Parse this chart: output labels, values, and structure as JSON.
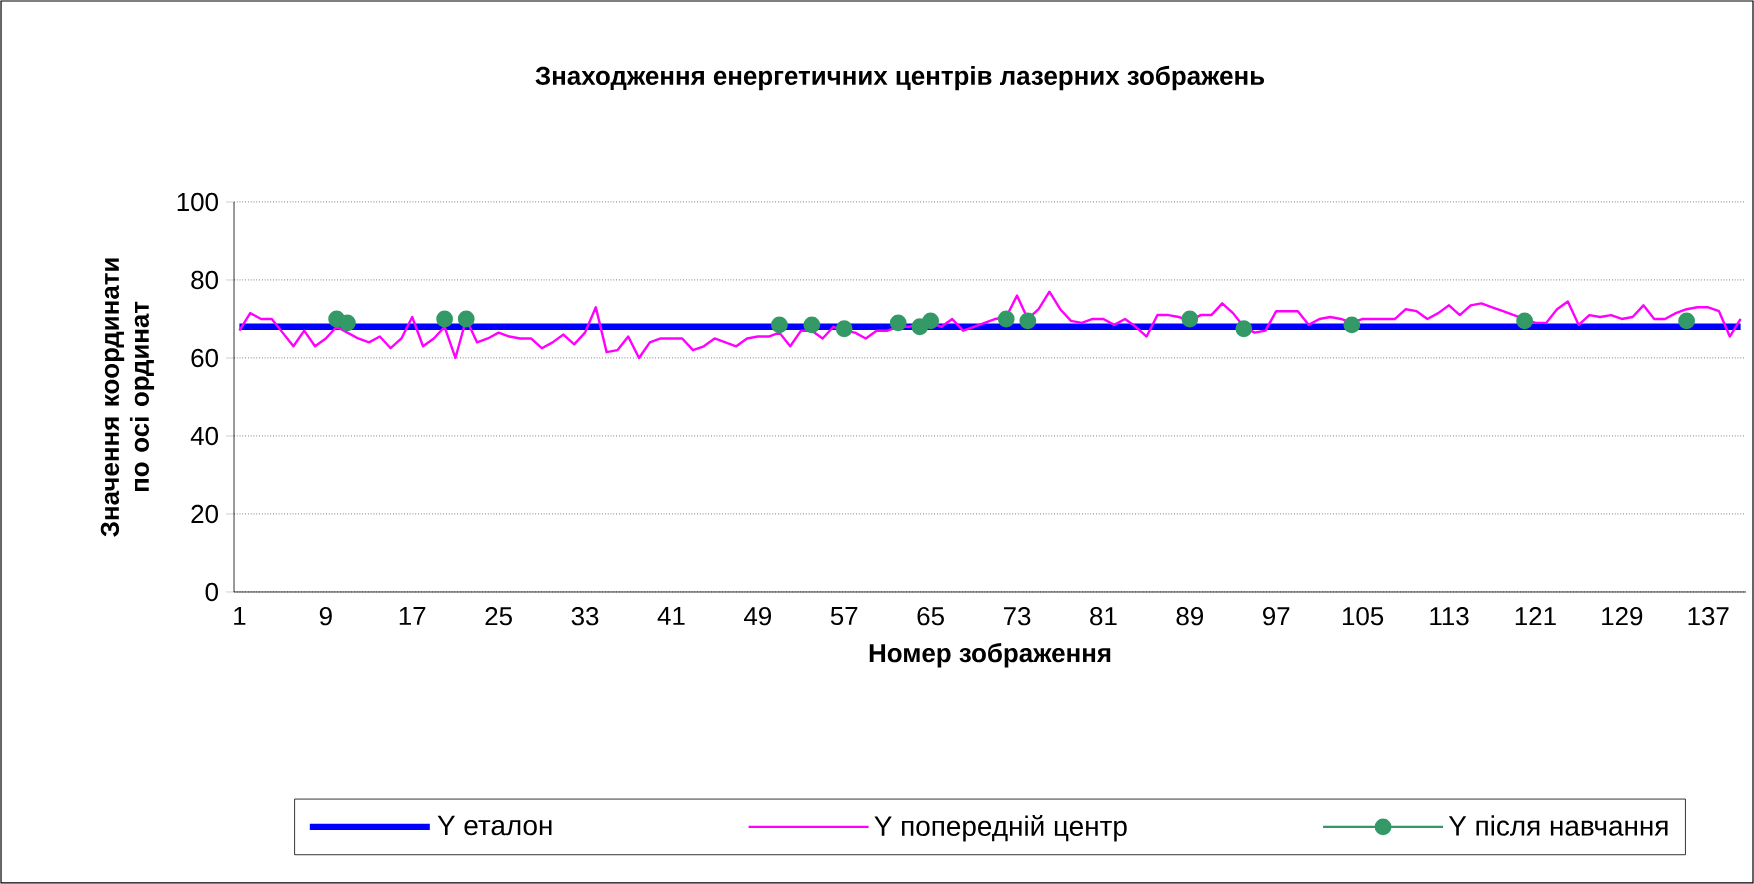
{
  "chart_data": {
    "type": "line",
    "title": "Знаходження енергетичних центрів лазерних зображень",
    "xlabel": "Номер зображення",
    "ylabel": "Значення координати по осі ординат",
    "categories": [
      "1",
      null,
      null,
      null,
      null,
      null,
      null,
      null,
      "9",
      null,
      null,
      null,
      null,
      null,
      null,
      null,
      "17",
      null,
      null,
      null,
      null,
      null,
      null,
      null,
      "25",
      null,
      null,
      null,
      null,
      null,
      null,
      null,
      "33",
      null,
      null,
      null,
      null,
      null,
      null,
      null,
      "41",
      null,
      null,
      null,
      null,
      null,
      null,
      null,
      "49",
      null,
      null,
      null,
      null,
      null,
      null,
      null,
      "57",
      null,
      null,
      null,
      null,
      null,
      null,
      null,
      "65",
      null,
      null,
      null,
      null,
      null,
      null,
      null,
      "73",
      null,
      null,
      null,
      null,
      null,
      null,
      null,
      "81",
      null,
      null,
      null,
      null,
      null,
      null,
      null,
      "89",
      null,
      null,
      null,
      null,
      null,
      null,
      null,
      "97",
      null,
      null,
      null,
      null,
      null,
      null,
      null,
      "105",
      null,
      null,
      null,
      null,
      null,
      null,
      null,
      "113",
      null,
      null,
      null,
      null,
      null,
      null,
      null,
      "121",
      null,
      null,
      null,
      null,
      null,
      null,
      null,
      "129",
      null,
      null,
      null,
      null,
      null,
      null,
      null,
      "137",
      null,
      null,
      null
    ],
    "ylim": [
      0,
      100
    ],
    "yticks": [
      0,
      20,
      40,
      60,
      80,
      100
    ],
    "grid": "y",
    "legend": "bottom",
    "series": [
      {
        "name": "Y еталон",
        "color": "#0000ff",
        "marker": "none",
        "values": [
          68,
          68,
          68,
          68,
          68,
          68,
          68,
          68,
          68,
          68,
          68,
          68,
          68,
          68,
          68,
          68,
          68,
          68,
          68,
          68,
          68,
          68,
          68,
          68,
          68,
          68,
          68,
          68,
          68,
          68,
          68,
          68,
          68,
          68,
          68,
          68,
          68,
          68,
          68,
          68,
          68,
          68,
          68,
          68,
          68,
          68,
          68,
          68,
          68,
          68,
          68,
          68,
          68,
          68,
          68,
          68,
          68,
          68,
          68,
          68,
          68,
          68,
          68,
          68,
          68,
          68,
          68,
          68,
          68,
          68,
          68,
          68,
          68,
          68,
          68,
          68,
          68,
          68,
          68,
          68,
          68,
          68,
          68,
          68,
          68,
          68,
          68,
          68,
          68,
          68,
          68,
          68,
          68,
          68,
          68,
          68,
          68,
          68,
          68,
          68,
          68,
          68,
          68,
          68,
          68,
          68,
          68,
          68,
          68,
          68,
          68,
          68,
          68,
          68,
          68,
          68,
          68,
          68,
          68,
          68,
          68,
          68,
          68,
          68,
          68,
          68,
          68,
          68,
          68,
          68,
          68,
          68,
          68,
          68,
          68,
          68,
          68,
          68,
          68,
          68
        ]
      },
      {
        "name": "Y попередній центр",
        "color": "#ff00ff",
        "marker": "none",
        "values": [
          67,
          71.5,
          70,
          70,
          66.5,
          63,
          67,
          63,
          65,
          68,
          66.5,
          65,
          64,
          65.5,
          62.5,
          65,
          70.5,
          63,
          65,
          68,
          60,
          70,
          64,
          65,
          66.5,
          65.5,
          65,
          65,
          62.5,
          64,
          66,
          63.5,
          66.5,
          73,
          61.5,
          62,
          65.5,
          60,
          64,
          65,
          65,
          65,
          62,
          63,
          65,
          64,
          63,
          65,
          65.5,
          65.5,
          66.5,
          63,
          67,
          67,
          65,
          68,
          67,
          66.5,
          65,
          67,
          67,
          68,
          68,
          69,
          69,
          68,
          70,
          67,
          68,
          69,
          70,
          70.5,
          76,
          70,
          72.5,
          77,
          72.5,
          69.5,
          69,
          70,
          70,
          68.5,
          70,
          68,
          65.5,
          71,
          71,
          70.5,
          69.5,
          71,
          71,
          74,
          71.5,
          68,
          66.5,
          67,
          72,
          72,
          72,
          68.5,
          70,
          70.5,
          70,
          69,
          70,
          70,
          70,
          70,
          72.5,
          72,
          70,
          71.5,
          73.5,
          71,
          73.5,
          74,
          73,
          72,
          71,
          70,
          69,
          69,
          72.5,
          74.5,
          68.5,
          71,
          70.5,
          71,
          70,
          70.5,
          73.5,
          70,
          70,
          71.5,
          72.5,
          73,
          73,
          72,
          65.5,
          70
        ]
      },
      {
        "name": "Y після навчання",
        "type": "scatter",
        "color": "#339966",
        "marker": "circle",
        "values": [
          null,
          null,
          null,
          null,
          null,
          null,
          null,
          null,
          null,
          70,
          69,
          null,
          null,
          null,
          null,
          null,
          null,
          null,
          null,
          70,
          null,
          70,
          null,
          null,
          null,
          null,
          null,
          null,
          null,
          null,
          null,
          null,
          null,
          null,
          null,
          null,
          null,
          null,
          null,
          null,
          null,
          null,
          null,
          null,
          null,
          null,
          null,
          null,
          null,
          null,
          68.5,
          null,
          null,
          68.5,
          null,
          null,
          67.5,
          null,
          null,
          null,
          null,
          69,
          null,
          68,
          69.5,
          null,
          null,
          null,
          null,
          null,
          null,
          70,
          null,
          69.5,
          null,
          null,
          null,
          null,
          null,
          null,
          null,
          null,
          null,
          null,
          null,
          null,
          null,
          null,
          70,
          null,
          null,
          null,
          null,
          67.5,
          null,
          null,
          null,
          null,
          null,
          null,
          null,
          null,
          null,
          68.5,
          null,
          null,
          null,
          null,
          null,
          null,
          null,
          null,
          null,
          null,
          null,
          null,
          null,
          null,
          null,
          69.5,
          null,
          null,
          null,
          null,
          null,
          null,
          null,
          null,
          null,
          null,
          null,
          null,
          null,
          null,
          69.5,
          null,
          null,
          null,
          null,
          null
        ]
      }
    ]
  }
}
